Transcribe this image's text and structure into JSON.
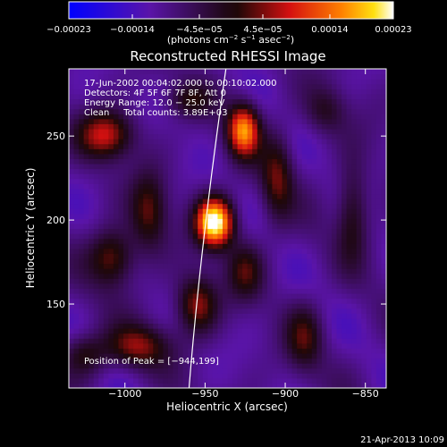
{
  "chart_data": {
    "type": "heatmap",
    "title": "Reconstructed RHESSI Image",
    "xlabel": "Heliocentric X (arcsec)",
    "ylabel": "Heliocentric Y (arcsec)",
    "xlim": [
      -1035,
      -837
    ],
    "ylim": [
      100,
      290
    ],
    "x_ticks": [
      -1000,
      -950,
      -900,
      -850
    ],
    "y_ticks": [
      150,
      200,
      250
    ],
    "x_tick_labels": [
      "−1000",
      "−950",
      "−900",
      "−850"
    ],
    "y_tick_labels": [
      "150",
      "200",
      "250"
    ],
    "colorbar": {
      "min": -0.00023,
      "max": 0.00023,
      "ticks": [
        -0.00023,
        -0.00014,
        -4.5e-05,
        4.5e-05,
        0.00014,
        0.00023
      ],
      "tick_labels": [
        "−0.00023",
        "−0.00014",
        "−4.5e−05",
        "4.5e−05",
        "0.00014",
        "0.00023"
      ],
      "units_prefix": "(photons cm",
      "units_exp1": "−2",
      "units_mid": " s",
      "units_exp2": "−1",
      "units_mid2": " asec",
      "units_exp3": "−2",
      "units_suffix": ")"
    },
    "info": {
      "time": "17-Jun-2002 00:04:02.000 to 00:10:02.000",
      "detectors": "Detectors: 4F 5F 6F 7F 8F, Att 0",
      "energy": "Energy Range: 12.0 − 25.0 keV",
      "clean": "Clean     Total counts: 3.89E+03"
    },
    "peak_label": "Position of Peak = [−944,199]",
    "peak": [
      -944,
      199
    ],
    "sources": [
      {
        "x": -944,
        "y": 199,
        "sx": 8,
        "sy": 10,
        "amp": 1.0
      },
      {
        "x": -926,
        "y": 254,
        "sx": 7,
        "sy": 11,
        "amp": 0.72
      },
      {
        "x": -1012,
        "y": 251,
        "sx": 12,
        "sy": 10,
        "amp": 0.5
      },
      {
        "x": -1008,
        "y": 178,
        "sx": 10,
        "sy": 12,
        "amp": 0.42
      },
      {
        "x": -985,
        "y": 205,
        "sx": 8,
        "sy": 16,
        "amp": 0.36
      },
      {
        "x": -955,
        "y": 150,
        "sx": 9,
        "sy": 12,
        "amp": 0.45
      },
      {
        "x": -992,
        "y": 125,
        "sx": 14,
        "sy": 9,
        "amp": 0.4
      },
      {
        "x": -1025,
        "y": 120,
        "sx": 10,
        "sy": 9,
        "amp": 0.3
      },
      {
        "x": -925,
        "y": 170,
        "sx": 8,
        "sy": 12,
        "amp": 0.3
      },
      {
        "x": -905,
        "y": 225,
        "sx": 7,
        "sy": 18,
        "amp": 0.35
      },
      {
        "x": -888,
        "y": 130,
        "sx": 8,
        "sy": 14,
        "amp": 0.3
      },
      {
        "x": -858,
        "y": 205,
        "sx": 7,
        "sy": 20,
        "amp": 0.3
      },
      {
        "x": -875,
        "y": 265,
        "sx": 9,
        "sy": 10,
        "amp": 0.22
      },
      {
        "x": -960,
        "y": 272,
        "sx": 10,
        "sy": 7,
        "amp": 0.25
      }
    ],
    "limb_curve": [
      [
        -937,
        290
      ],
      [
        -946,
        230
      ],
      [
        -955,
        160
      ],
      [
        -960,
        100
      ]
    ]
  },
  "footer": {
    "timestamp": "21-Apr-2013 10:09"
  }
}
